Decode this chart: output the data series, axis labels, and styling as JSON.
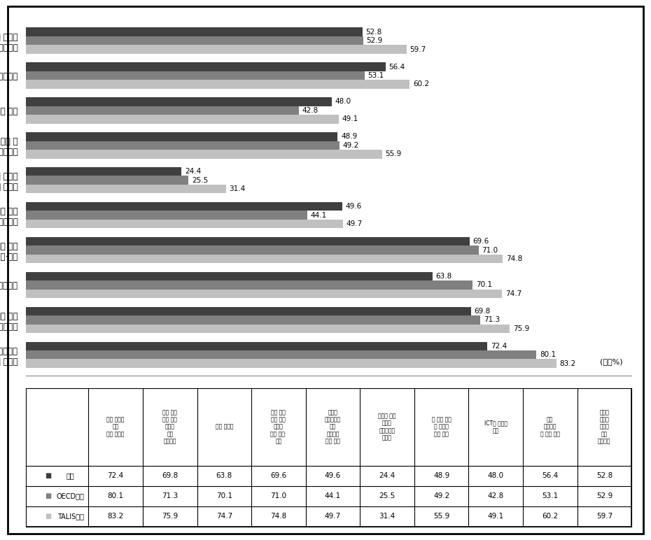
{
  "categories": [
    "담당교과의\n전부 또는 일부분",
    "담당교과 전부 또는\n일부에 대한 교육방법",
    "일반교육학",
    "담당교과 전부 또는\n일부에 대한 교수·학습",
    "다양한 학업능력을 가진\n학생들에 대한교육",
    "다문화 또는 다언어\n환경에서의 교수법",
    "범교과 지식 및\n기술에 대한교육",
    "ICT를 활용한 수업",
    "학생 생활지도 및 학급관리",
    "학생의 발달과 학습에\n대한 모니터링"
  ],
  "korea": [
    72.4,
    69.8,
    63.8,
    69.6,
    49.6,
    24.4,
    48.9,
    48.0,
    56.4,
    52.8
  ],
  "oecd": [
    80.1,
    71.3,
    70.1,
    71.0,
    44.1,
    25.5,
    49.2,
    42.8,
    53.1,
    52.9
  ],
  "talis": [
    83.2,
    75.9,
    74.7,
    74.8,
    49.7,
    31.4,
    55.9,
    49.1,
    60.2,
    59.7
  ],
  "color_korea": "#404040",
  "color_oecd": "#808080",
  "color_talis": "#c0c0c0",
  "bar_height": 0.25,
  "xlim": [
    0,
    95
  ],
  "unit_label": "(단위%)",
  "table_headers": [
    "담당 교과의\n전부\n또는 일부분",
    "담당 교과\n전부 또는\n일부에\n대한\n교육방법",
    "일반 교육학",
    "담당 교과\n전부 또는\n일부에\n대한 교수·\n학습",
    "다양한\n학업능력을\n가진\n학생들에\n대한 교육",
    "다문화 또는\n다언어\n환경에서의\n교수법",
    "범 교과 지식\n및 기술에\n대한 교육",
    "ICT를 활용한\n수업",
    "학생\n생활지도\n및 학급 관리",
    "학생의\n발달과\n학습에\n대한\n모니터링"
  ],
  "row_labels": [
    "한국",
    "OECD평균",
    "TALIS평균"
  ],
  "table_data": [
    [
      72.4,
      69.8,
      63.8,
      69.6,
      49.6,
      24.4,
      48.9,
      48.0,
      56.4,
      52.8
    ],
    [
      80.1,
      71.3,
      70.1,
      71.0,
      44.1,
      25.5,
      49.2,
      42.8,
      53.1,
      52.9
    ],
    [
      83.2,
      75.9,
      74.7,
      74.8,
      49.7,
      31.4,
      55.9,
      49.1,
      60.2,
      59.7
    ]
  ],
  "background_color": "#ffffff",
  "border_color": "#000000"
}
